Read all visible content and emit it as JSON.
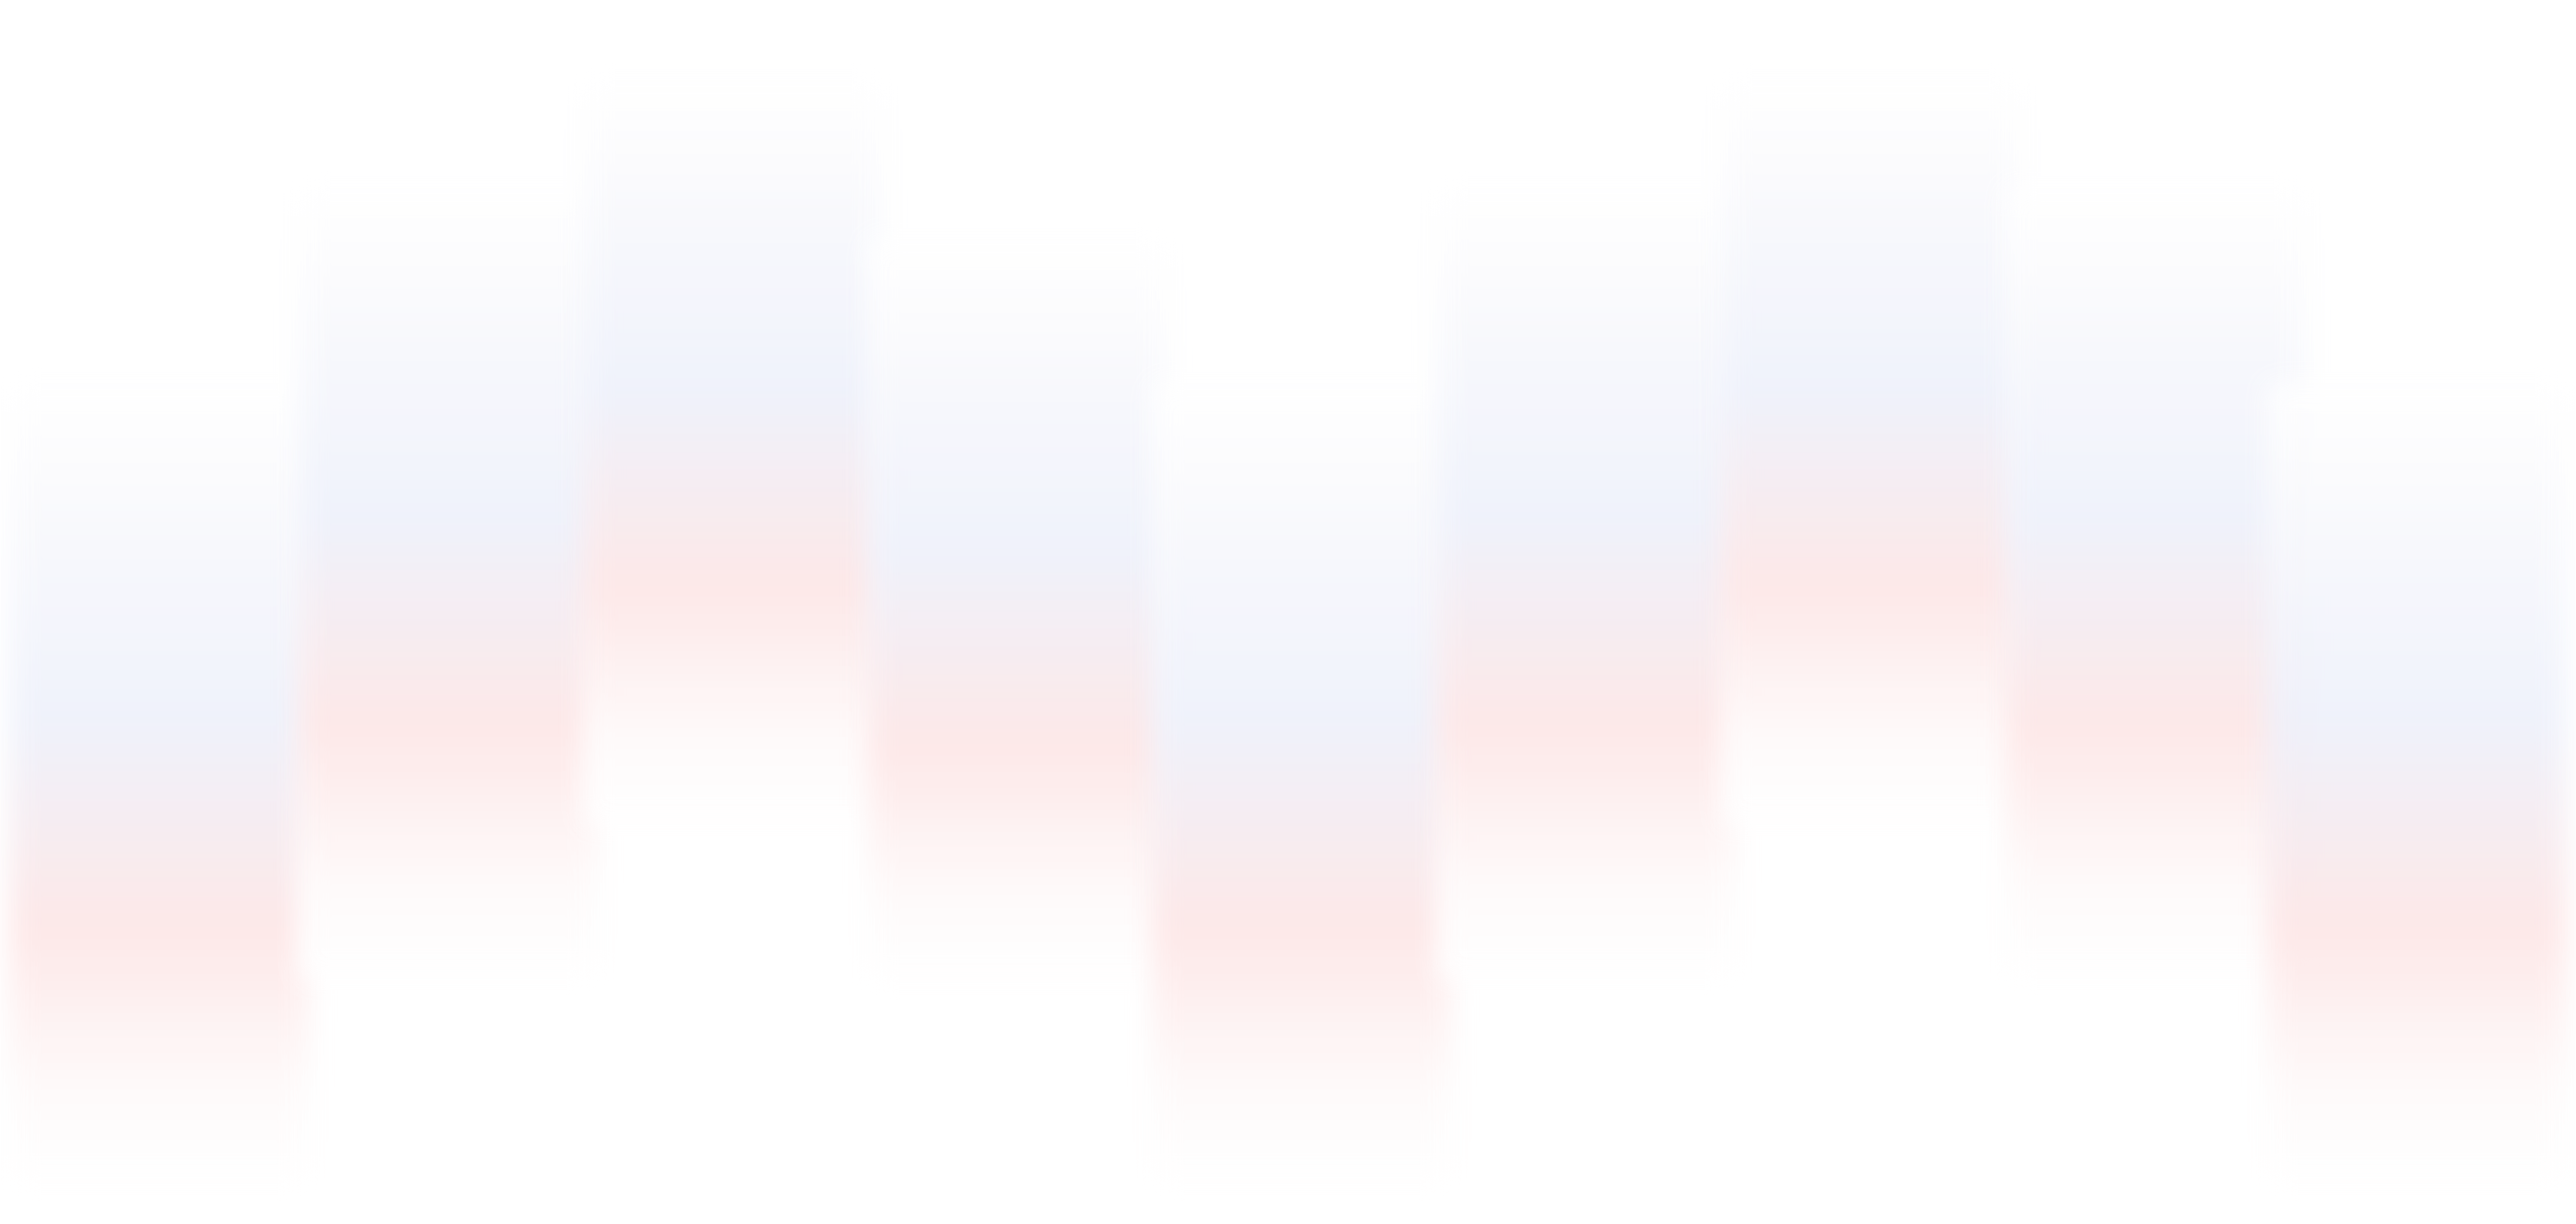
{
  "decoration": {
    "type": "blurred-gradient-columns",
    "column_count": 9,
    "colors": {
      "background": "#ffffff",
      "top": "#fbfbfd",
      "middle": "#eef1fb",
      "lower": "#fde6e6",
      "bottom": "#fefafa"
    }
  }
}
